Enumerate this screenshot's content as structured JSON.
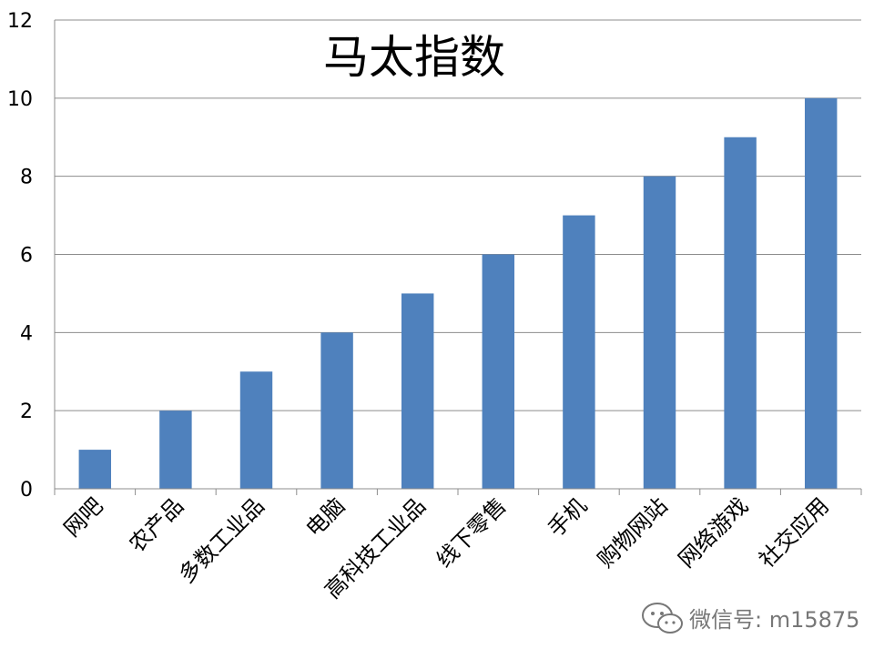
{
  "chart_data": {
    "type": "bar",
    "title": "马太指数",
    "categories": [
      "网吧",
      "农产品",
      "多数工业品",
      "电脑",
      "高科技工业品",
      "线下零售",
      "手机",
      "购物网站",
      "网络游戏",
      "社交应用"
    ],
    "values": [
      1,
      2,
      3,
      4,
      5,
      6,
      7,
      8,
      9,
      10
    ],
    "ylim": [
      0,
      12
    ],
    "yticks": [
      0,
      2,
      4,
      6,
      8,
      10,
      12
    ],
    "grid": true,
    "legend": "none",
    "bar_color": "#4f81bd",
    "grid_color": "#8c8c8c"
  },
  "watermark": {
    "text": "微信号: m15875",
    "icon": "wechat-icon"
  }
}
